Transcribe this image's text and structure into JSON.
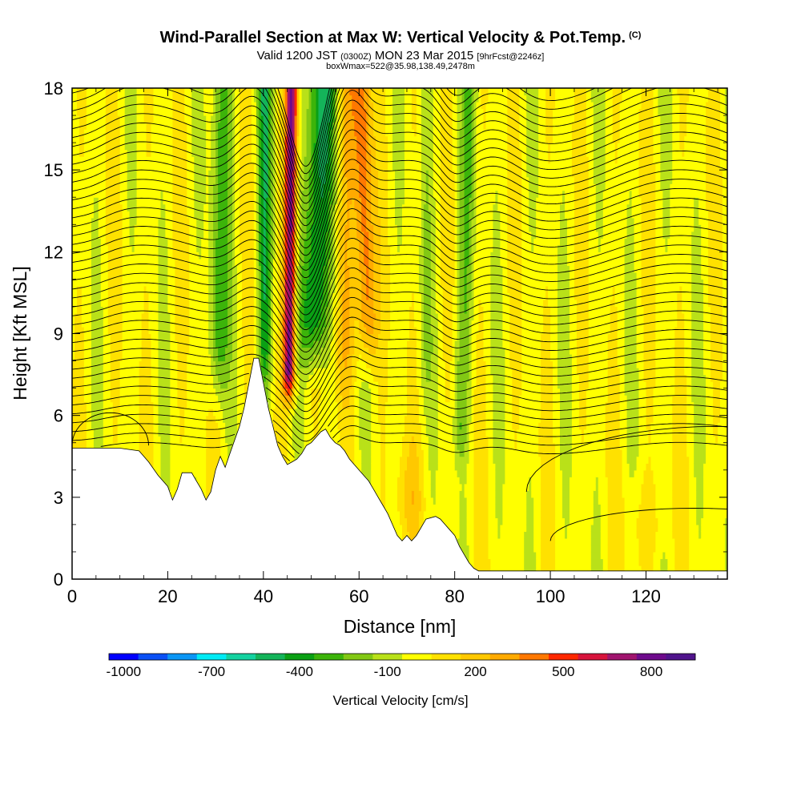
{
  "header": {
    "title": "Wind-Parallel Section at Max W: Vertical Velocity & Pot.Temp.",
    "copyright": "(C)",
    "valid_prefix": "Valid 1200 JST",
    "valid_utc": "(0300Z)",
    "valid_date": "MON 23 Mar 2015",
    "forecast": "[9hrFcst@2246z]",
    "box_info": "boxWmax=522@35.98,138.49,2478m"
  },
  "chart_data": {
    "type": "heatmap",
    "xlabel": "Distance [nm]",
    "ylabel": "Height [Kft MSL]",
    "xlim": [
      0,
      137
    ],
    "ylim": [
      0,
      18
    ],
    "x_ticks": [
      0,
      20,
      40,
      60,
      80,
      100,
      120
    ],
    "y_ticks": [
      0,
      3,
      6,
      9,
      12,
      15,
      18
    ],
    "colorbar": {
      "label": "Vertical Velocity [cm/s]",
      "tick_labels": [
        "-1000",
        "-700",
        "-400",
        "-100",
        "200",
        "500",
        "800"
      ],
      "bins": [
        -1000,
        -900,
        -800,
        -700,
        -600,
        -500,
        -400,
        -300,
        -200,
        -100,
        0,
        100,
        200,
        300,
        400,
        500,
        600,
        700,
        800,
        900
      ],
      "colors": [
        "#0000ff",
        "#0a50f5",
        "#0a96f5",
        "#00ebf5",
        "#14d2a0",
        "#14b45a",
        "#0aa014",
        "#3cb40a",
        "#82c814",
        "#b9e119",
        "#ffff00",
        "#ffe100",
        "#ffc800",
        "#ffaa00",
        "#ff7800",
        "#ff2800",
        "#d7143c",
        "#a0146e",
        "#6e0a8c",
        "#50148c"
      ]
    },
    "terrain_profile": [
      [
        0,
        4.8
      ],
      [
        10,
        4.8
      ],
      [
        14,
        4.7
      ],
      [
        16,
        4.3
      ],
      [
        18,
        3.8
      ],
      [
        20,
        3.4
      ],
      [
        21,
        2.9
      ],
      [
        22,
        3.3
      ],
      [
        23,
        3.9
      ],
      [
        25,
        3.9
      ],
      [
        26,
        3.6
      ],
      [
        27,
        3.3
      ],
      [
        28,
        2.9
      ],
      [
        29,
        3.2
      ],
      [
        30,
        4.0
      ],
      [
        31,
        4.5
      ],
      [
        32,
        4.1
      ],
      [
        33,
        4.6
      ],
      [
        34,
        5.1
      ],
      [
        35,
        5.6
      ],
      [
        36,
        6.3
      ],
      [
        37,
        7.2
      ],
      [
        38,
        8.1
      ],
      [
        39,
        8.1
      ],
      [
        40,
        7.2
      ],
      [
        41,
        6.3
      ],
      [
        42,
        5.6
      ],
      [
        43,
        4.9
      ],
      [
        44,
        4.5
      ],
      [
        45,
        4.2
      ],
      [
        46,
        4.3
      ],
      [
        47,
        4.4
      ],
      [
        48,
        4.6
      ],
      [
        49,
        4.9
      ],
      [
        50,
        5.0
      ],
      [
        51,
        5.2
      ],
      [
        52,
        5.4
      ],
      [
        53,
        5.5
      ],
      [
        54,
        5.2
      ],
      [
        55,
        5.0
      ],
      [
        56,
        4.9
      ],
      [
        57,
        4.7
      ],
      [
        58,
        4.4
      ],
      [
        59,
        4.2
      ],
      [
        60,
        4.0
      ],
      [
        61,
        3.8
      ],
      [
        62,
        3.6
      ],
      [
        63,
        3.3
      ],
      [
        64,
        3.0
      ],
      [
        65,
        2.7
      ],
      [
        66,
        2.4
      ],
      [
        67,
        2.0
      ],
      [
        68,
        1.6
      ],
      [
        69,
        1.4
      ],
      [
        70,
        1.6
      ],
      [
        71,
        1.4
      ],
      [
        72,
        1.6
      ],
      [
        73,
        1.9
      ],
      [
        74,
        2.2
      ],
      [
        76,
        2.3
      ],
      [
        77,
        2.2
      ],
      [
        78,
        2.0
      ],
      [
        79,
        1.8
      ],
      [
        80,
        1.6
      ],
      [
        81,
        1.2
      ],
      [
        82,
        0.9
      ],
      [
        83,
        0.6
      ],
      [
        84,
        0.4
      ],
      [
        85,
        0.3
      ],
      [
        137,
        0.3
      ]
    ],
    "vertical_velocity_features": [
      {
        "x": 45.5,
        "w_cm_s": 800,
        "description": "strong updraft core"
      },
      {
        "x": 52,
        "w_cm_s": -500,
        "description": "downdraft"
      },
      {
        "x": 40,
        "w_cm_s": -400,
        "description": "downdraft"
      },
      {
        "x": 31,
        "w_cm_s": -300,
        "description": "downdraft"
      },
      {
        "x": 61,
        "w_cm_s": 400,
        "description": "updraft"
      },
      {
        "x": 82,
        "w_cm_s": -200,
        "description": "downdraft"
      }
    ],
    "potential_temperature_contours": "black isentropes, sloping around the wave at 40-65 nm"
  }
}
